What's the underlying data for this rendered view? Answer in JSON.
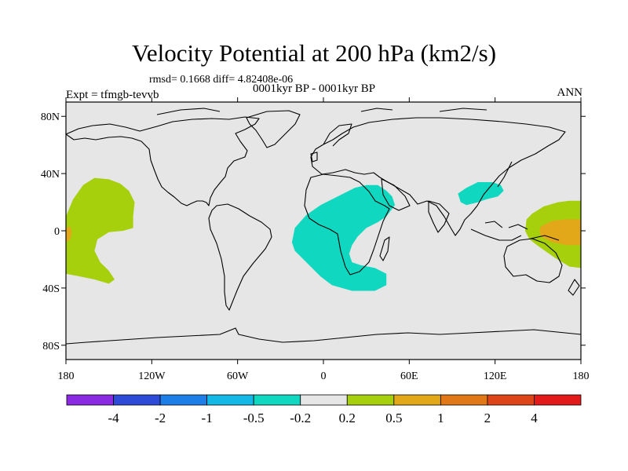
{
  "title": "Velocity Potential at 200 hPa (km2/s)",
  "stats": "rmsd= 0.1668 diff= 4.82408e-06",
  "experiment": "Expt = tfmgb-tevvb",
  "period": "0001kyr BP - 0001kyr BP",
  "season": "ANN",
  "map": {
    "projection": "cylindrical-equidistant",
    "lon_range": [
      -180,
      180
    ],
    "lat_range": [
      -90,
      90
    ],
    "background_color": "#e6e6e6",
    "coastline_color": "#000000",
    "lat_ticks": [
      {
        "value": 80,
        "label": "80N"
      },
      {
        "value": 40,
        "label": "40N"
      },
      {
        "value": 0,
        "label": "0"
      },
      {
        "value": -40,
        "label": "40S"
      },
      {
        "value": -80,
        "label": "80S"
      }
    ],
    "lon_ticks": [
      {
        "value": -180,
        "label": "180"
      },
      {
        "value": -120,
        "label": "120W"
      },
      {
        "value": -60,
        "label": "60W"
      },
      {
        "value": 0,
        "label": "0"
      },
      {
        "value": 60,
        "label": "60E"
      },
      {
        "value": 120,
        "label": "120E"
      },
      {
        "value": 180,
        "label": "180"
      }
    ],
    "regions": [
      {
        "name": "east-pacific-positive",
        "level": "0.2 to 0.5",
        "color": "#a6cf0c",
        "points": [
          [
            -180,
            10
          ],
          [
            -175,
            22
          ],
          [
            -168,
            32
          ],
          [
            -160,
            37
          ],
          [
            -150,
            36
          ],
          [
            -142,
            33
          ],
          [
            -136,
            28
          ],
          [
            -132,
            20
          ],
          [
            -133,
            10
          ],
          [
            -133,
            2
          ],
          [
            -140,
            0
          ],
          [
            -150,
            -1
          ],
          [
            -158,
            -6
          ],
          [
            -160,
            -14
          ],
          [
            -156,
            -22
          ],
          [
            -150,
            -28
          ],
          [
            -146,
            -34
          ],
          [
            -150,
            -37
          ],
          [
            -160,
            -34
          ],
          [
            -170,
            -32
          ],
          [
            -180,
            -30
          ]
        ]
      },
      {
        "name": "east-pacific-positive-core",
        "level": "0.5 to 1",
        "color": "#e3a81a",
        "points": [
          [
            -180,
            2
          ],
          [
            -177,
            3
          ],
          [
            -176,
            -1
          ],
          [
            -177,
            -6
          ],
          [
            -180,
            -8
          ]
        ]
      },
      {
        "name": "africa-negative",
        "level": "-0.5 to -0.2",
        "color": "#10d7c0",
        "points": [
          [
            -22,
            -8
          ],
          [
            -20,
            2
          ],
          [
            -12,
            11
          ],
          [
            -2,
            18
          ],
          [
            10,
            24
          ],
          [
            22,
            30
          ],
          [
            30,
            32
          ],
          [
            38,
            32
          ],
          [
            44,
            28
          ],
          [
            48,
            24
          ],
          [
            50,
            18
          ],
          [
            44,
            10
          ],
          [
            38,
            6
          ],
          [
            30,
            2
          ],
          [
            24,
            -4
          ],
          [
            20,
            -10
          ],
          [
            18,
            -16
          ],
          [
            20,
            -22
          ],
          [
            26,
            -24
          ],
          [
            36,
            -26
          ],
          [
            44,
            -30
          ],
          [
            44,
            -38
          ],
          [
            36,
            -42
          ],
          [
            20,
            -42
          ],
          [
            6,
            -38
          ],
          [
            -2,
            -32
          ],
          [
            -6,
            -28
          ],
          [
            -14,
            -20
          ],
          [
            -20,
            -14
          ]
        ]
      },
      {
        "name": "asia-negative",
        "level": "-0.5 to -0.2",
        "color": "#10d7c0",
        "points": [
          [
            94,
            26
          ],
          [
            100,
            30
          ],
          [
            108,
            34
          ],
          [
            118,
            34
          ],
          [
            124,
            32
          ],
          [
            126,
            28
          ],
          [
            122,
            24
          ],
          [
            114,
            22
          ],
          [
            108,
            20
          ],
          [
            100,
            18
          ],
          [
            96,
            20
          ]
        ]
      },
      {
        "name": "west-pacific-positive",
        "level": "0.2 to 0.5",
        "color": "#a6cf0c",
        "points": [
          [
            142,
            8
          ],
          [
            146,
            12
          ],
          [
            154,
            17
          ],
          [
            164,
            20
          ],
          [
            172,
            21
          ],
          [
            180,
            21
          ],
          [
            180,
            -26
          ],
          [
            172,
            -25
          ],
          [
            162,
            -19
          ],
          [
            152,
            -12
          ],
          [
            144,
            -6
          ],
          [
            141,
            0
          ]
        ]
      },
      {
        "name": "west-pacific-positive-core",
        "level": "0.5 to 1",
        "color": "#e3a81a",
        "points": [
          [
            152,
            3
          ],
          [
            160,
            7
          ],
          [
            170,
            8
          ],
          [
            180,
            8
          ],
          [
            180,
            -10
          ],
          [
            170,
            -10
          ],
          [
            160,
            -8
          ],
          [
            152,
            -4
          ],
          [
            151,
            0
          ]
        ]
      }
    ]
  },
  "colorbar": {
    "levels": [
      "-4",
      "-2",
      "-1",
      "-0.5",
      "-0.2",
      "0.2",
      "0.5",
      "1",
      "2",
      "4"
    ],
    "colors": [
      "#8a2be2",
      "#2e4bd8",
      "#1e7ee8",
      "#14b8e6",
      "#10d7c0",
      "#e6e6e6",
      "#a6cf0c",
      "#e3a81a",
      "#e07818",
      "#dd4418",
      "#e31a1a"
    ]
  }
}
